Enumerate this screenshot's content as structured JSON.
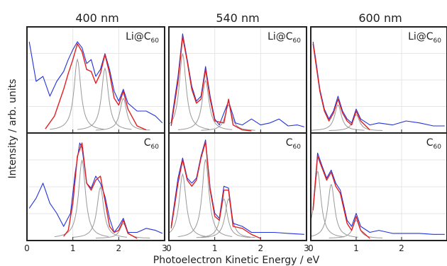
{
  "figure": {
    "ylabel": "Intensity / arb. units",
    "xlabel": "Photoelectron Kinetic Energy / eV",
    "column_titles": [
      "400 nm",
      "540 nm",
      "600 nm"
    ],
    "row_species": [
      "Li@C",
      "C"
    ],
    "species_subscript": "60",
    "x_tick_labels": [
      "0",
      "1",
      "2",
      "3"
    ]
  },
  "colors": {
    "experiment": "#2233dd",
    "fit": "#e02020",
    "components": "#999999",
    "frame": "#222222",
    "grid": "#e6e6e6"
  },
  "chart_data": [
    {
      "type": "line",
      "panel": "Li@C60 400 nm",
      "xlim": [
        0,
        3
      ],
      "ylim": [
        0,
        1
      ],
      "series": [
        {
          "role": "experiment",
          "x": [
            0.05,
            0.2,
            0.35,
            0.5,
            0.65,
            0.8,
            0.9,
            1.0,
            1.1,
            1.2,
            1.3,
            1.4,
            1.5,
            1.6,
            1.7,
            1.8,
            1.9,
            2.0,
            2.1,
            2.2,
            2.4,
            2.6,
            2.8,
            2.95
          ],
          "y": [
            0.9,
            0.5,
            0.55,
            0.35,
            0.5,
            0.6,
            0.72,
            0.82,
            0.9,
            0.84,
            0.68,
            0.72,
            0.55,
            0.62,
            0.78,
            0.62,
            0.4,
            0.3,
            0.42,
            0.28,
            0.2,
            0.2,
            0.15,
            0.08
          ]
        },
        {
          "role": "fit",
          "x": [
            0.4,
            0.6,
            0.8,
            0.9,
            1.0,
            1.1,
            1.2,
            1.3,
            1.4,
            1.5,
            1.6,
            1.7,
            1.8,
            1.9,
            2.0,
            2.1,
            2.2,
            2.4,
            2.6
          ],
          "y": [
            0.02,
            0.15,
            0.42,
            0.58,
            0.72,
            0.88,
            0.8,
            0.62,
            0.6,
            0.48,
            0.58,
            0.77,
            0.58,
            0.33,
            0.26,
            0.4,
            0.22,
            0.05,
            0.01
          ]
        }
      ]
    },
    {
      "type": "line",
      "panel": "Li@C60 540 nm",
      "xlim": [
        0,
        3
      ],
      "ylim": [
        0,
        1
      ],
      "series": [
        {
          "role": "experiment",
          "x": [
            0.05,
            0.2,
            0.3,
            0.4,
            0.5,
            0.6,
            0.7,
            0.8,
            0.9,
            1.0,
            1.1,
            1.3,
            1.45,
            1.6,
            1.8,
            2.0,
            2.2,
            2.4,
            2.6,
            2.8,
            2.95
          ],
          "y": [
            0.08,
            0.55,
            0.98,
            0.72,
            0.45,
            0.3,
            0.35,
            0.65,
            0.35,
            0.12,
            0.06,
            0.3,
            0.08,
            0.06,
            0.12,
            0.06,
            0.08,
            0.12,
            0.05,
            0.06,
            0.04
          ]
        },
        {
          "role": "fit",
          "x": [
            0.05,
            0.2,
            0.3,
            0.4,
            0.5,
            0.6,
            0.7,
            0.8,
            0.9,
            1.0,
            1.2,
            1.3,
            1.4,
            1.6,
            1.8
          ],
          "y": [
            0.05,
            0.5,
            0.95,
            0.7,
            0.42,
            0.28,
            0.32,
            0.62,
            0.32,
            0.1,
            0.08,
            0.32,
            0.06,
            0.01,
            0.0
          ]
        }
      ]
    },
    {
      "type": "line",
      "panel": "Li@C60 600 nm",
      "xlim": [
        0,
        3
      ],
      "ylim": [
        0,
        1
      ],
      "series": [
        {
          "role": "experiment",
          "x": [
            0.05,
            0.1,
            0.2,
            0.3,
            0.4,
            0.5,
            0.6,
            0.7,
            0.8,
            0.9,
            1.0,
            1.1,
            1.3,
            1.5,
            1.8,
            2.1,
            2.4,
            2.7,
            2.95
          ],
          "y": [
            0.9,
            0.75,
            0.42,
            0.22,
            0.12,
            0.2,
            0.35,
            0.2,
            0.12,
            0.08,
            0.22,
            0.12,
            0.06,
            0.08,
            0.06,
            0.1,
            0.08,
            0.05,
            0.05
          ]
        },
        {
          "role": "fit",
          "x": [
            0.05,
            0.1,
            0.2,
            0.3,
            0.4,
            0.5,
            0.6,
            0.7,
            0.8,
            0.9,
            1.0,
            1.1,
            1.3
          ],
          "y": [
            0.88,
            0.72,
            0.4,
            0.2,
            0.1,
            0.18,
            0.32,
            0.18,
            0.1,
            0.06,
            0.2,
            0.1,
            0.01
          ]
        }
      ]
    },
    {
      "type": "line",
      "panel": "C60 400 nm",
      "xlim": [
        0,
        3
      ],
      "ylim": [
        0,
        1
      ],
      "series": [
        {
          "role": "experiment",
          "x": [
            0.05,
            0.2,
            0.35,
            0.5,
            0.65,
            0.8,
            0.95,
            1.05,
            1.15,
            1.2,
            1.3,
            1.4,
            1.5,
            1.6,
            1.7,
            1.8,
            1.9,
            2.0,
            2.1,
            2.2,
            2.4,
            2.6,
            2.8,
            2.95
          ],
          "y": [
            0.3,
            0.4,
            0.55,
            0.35,
            0.25,
            0.12,
            0.25,
            0.65,
            0.95,
            0.9,
            0.55,
            0.5,
            0.62,
            0.55,
            0.42,
            0.2,
            0.06,
            0.12,
            0.2,
            0.06,
            0.06,
            0.1,
            0.08,
            0.05
          ]
        },
        {
          "role": "fit",
          "x": [
            0.8,
            0.9,
            1.0,
            1.1,
            1.2,
            1.3,
            1.4,
            1.5,
            1.6,
            1.7,
            1.8,
            1.9,
            2.0,
            2.1,
            2.2,
            2.4
          ],
          "y": [
            0.02,
            0.08,
            0.35,
            0.82,
            0.95,
            0.55,
            0.48,
            0.58,
            0.62,
            0.38,
            0.12,
            0.06,
            0.08,
            0.18,
            0.05,
            0.0
          ]
        }
      ]
    },
    {
      "type": "line",
      "panel": "C60 540 nm",
      "xlim": [
        0,
        3
      ],
      "ylim": [
        0,
        1
      ],
      "series": [
        {
          "role": "experiment",
          "x": [
            0.05,
            0.2,
            0.3,
            0.4,
            0.5,
            0.6,
            0.7,
            0.8,
            0.9,
            1.0,
            1.1,
            1.2,
            1.3,
            1.4,
            1.6,
            1.8,
            2.0,
            2.3,
            2.6,
            2.95
          ],
          "y": [
            0.12,
            0.6,
            0.8,
            0.6,
            0.55,
            0.6,
            0.82,
            0.98,
            0.5,
            0.25,
            0.2,
            0.52,
            0.5,
            0.15,
            0.12,
            0.06,
            0.06,
            0.06,
            0.05,
            0.04
          ]
        },
        {
          "role": "fit",
          "x": [
            0.05,
            0.2,
            0.3,
            0.4,
            0.5,
            0.6,
            0.7,
            0.8,
            0.9,
            1.0,
            1.1,
            1.2,
            1.3,
            1.4,
            1.6,
            1.8,
            2.0
          ],
          "y": [
            0.1,
            0.55,
            0.78,
            0.58,
            0.52,
            0.58,
            0.8,
            0.96,
            0.48,
            0.22,
            0.18,
            0.48,
            0.48,
            0.12,
            0.1,
            0.04,
            0.0
          ]
        }
      ]
    },
    {
      "type": "line",
      "panel": "C60 600 nm",
      "xlim": [
        0,
        3
      ],
      "ylim": [
        0,
        1
      ],
      "series": [
        {
          "role": "experiment",
          "x": [
            0.05,
            0.15,
            0.25,
            0.35,
            0.45,
            0.55,
            0.65,
            0.8,
            0.9,
            1.0,
            1.1,
            1.3,
            1.5,
            1.8,
            2.1,
            2.4,
            2.7,
            2.95
          ],
          "y": [
            0.3,
            0.85,
            0.72,
            0.6,
            0.68,
            0.55,
            0.48,
            0.18,
            0.12,
            0.25,
            0.12,
            0.06,
            0.08,
            0.05,
            0.05,
            0.05,
            0.04,
            0.04
          ]
        },
        {
          "role": "fit",
          "x": [
            0.05,
            0.15,
            0.25,
            0.35,
            0.45,
            0.55,
            0.65,
            0.8,
            0.9,
            1.0,
            1.1,
            1.3
          ],
          "y": [
            0.28,
            0.82,
            0.7,
            0.58,
            0.66,
            0.52,
            0.45,
            0.15,
            0.08,
            0.22,
            0.08,
            0.0
          ]
        }
      ]
    }
  ]
}
